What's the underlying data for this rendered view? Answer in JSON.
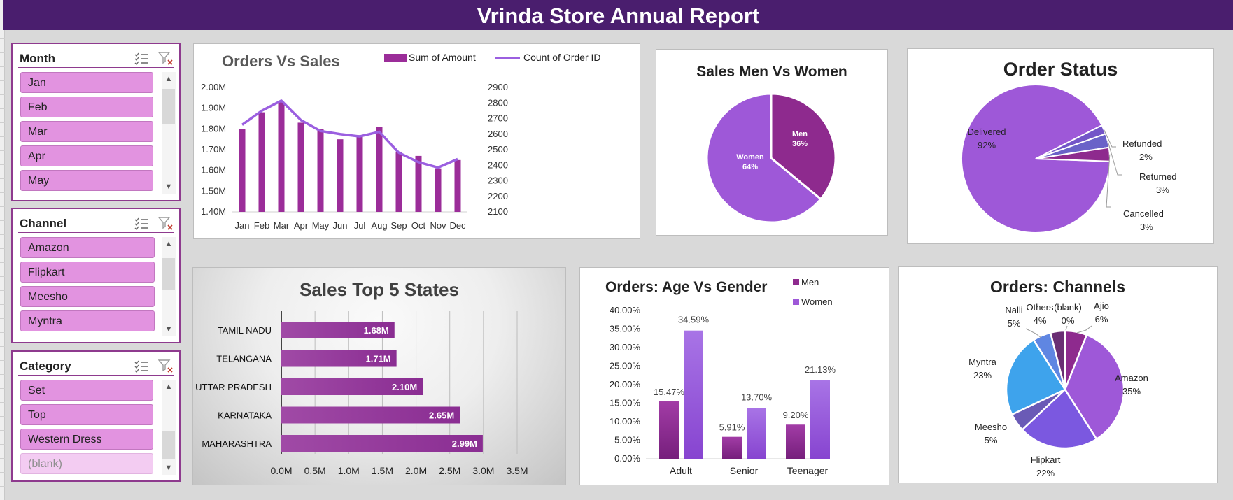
{
  "title": "Vrinda Store Annual Report",
  "slicers": {
    "month": {
      "title": "Month",
      "items": [
        "Jan",
        "Feb",
        "Mar",
        "Apr",
        "May"
      ]
    },
    "channel": {
      "title": "Channel",
      "items": [
        "Amazon",
        "Flipkart",
        "Meesho",
        "Myntra"
      ]
    },
    "category": {
      "title": "Category",
      "items": [
        "Set",
        "Top",
        "Western Dress",
        "(blank)"
      ]
    },
    "icons": {
      "multiselect": "multi-select-icon",
      "clear": "clear-filter-icon",
      "scroll_up": "chevron-up-icon",
      "scroll_down": "chevron-down-icon"
    }
  },
  "colors": {
    "header": "#4a1e6e",
    "bar_purple": "#9b2d99",
    "line_purple": "#9b5fe0",
    "men": "#8e2a8e",
    "women": "#9e58d8",
    "slicer_item": "#e293e0",
    "slicer_border": "#8e3a8e"
  },
  "chart_data": [
    {
      "type": "bar",
      "title": "Orders Vs Sales",
      "categories": [
        "Jan",
        "Feb",
        "Mar",
        "Apr",
        "May",
        "Jun",
        "Jul",
        "Aug",
        "Sep",
        "Oct",
        "Nov",
        "Dec"
      ],
      "series": [
        {
          "name": "Sum of Amount",
          "type": "bar",
          "axis": "left",
          "values": [
            1.8,
            1.88,
            1.93,
            1.83,
            1.8,
            1.75,
            1.77,
            1.81,
            1.69,
            1.67,
            1.61,
            1.65
          ]
        },
        {
          "name": "Count of Order ID",
          "type": "line",
          "axis": "right",
          "values": [
            2660,
            2750,
            2815,
            2690,
            2620,
            2600,
            2585,
            2615,
            2480,
            2420,
            2385,
            2440
          ]
        }
      ],
      "ylim_left": [
        1.4,
        2.0
      ],
      "ylim_right": [
        2100,
        2900
      ],
      "ytick_labels_left": [
        "2.00M",
        "1.90M",
        "1.80M",
        "1.70M",
        "1.60M",
        "1.50M",
        "1.40M"
      ],
      "ytick_labels_right": [
        "2900",
        "2800",
        "2700",
        "2600",
        "2500",
        "2400",
        "2300",
        "2200",
        "2100"
      ],
      "legend": "top"
    },
    {
      "type": "pie",
      "title": "Sales Men Vs Women",
      "labels": [
        "Men",
        "Women"
      ],
      "values": [
        36,
        64
      ],
      "value_labels": [
        "36%",
        "64%"
      ]
    },
    {
      "type": "pie",
      "title": "Order Status",
      "labels": [
        "Delivered",
        "Refunded",
        "Returned",
        "Cancelled"
      ],
      "values": [
        92,
        2,
        3,
        3
      ],
      "value_labels": [
        "92%",
        "2%",
        "3%",
        "3%"
      ]
    },
    {
      "type": "bar",
      "orientation": "horizontal",
      "title": "Sales Top 5 States",
      "categories": [
        "TAMIL NADU",
        "TELANGANA",
        "UTTAR PRADESH",
        "KARNATAKA",
        "MAHARASHTRA"
      ],
      "values": [
        1.68,
        1.71,
        2.1,
        2.65,
        2.99
      ],
      "value_labels": [
        "1.68M",
        "1.71M",
        "2.10M",
        "2.65M",
        "2.99M"
      ],
      "xlim": [
        0,
        3.5
      ],
      "xtick_labels": [
        "0.0M",
        "0.5M",
        "1.0M",
        "1.5M",
        "2.0M",
        "2.5M",
        "3.0M",
        "3.5M"
      ]
    },
    {
      "type": "bar",
      "title": "Orders: Age Vs Gender",
      "categories": [
        "Adult",
        "Senior",
        "Teenager"
      ],
      "series": [
        {
          "name": "Men",
          "values": [
            15.47,
            5.91,
            9.2
          ],
          "value_labels": [
            "15.47%",
            "5.91%",
            "9.20%"
          ]
        },
        {
          "name": "Women",
          "values": [
            34.59,
            13.7,
            21.13
          ],
          "value_labels": [
            "34.59%",
            "13.70%",
            "21.13%"
          ]
        }
      ],
      "ylim": [
        0,
        40
      ],
      "ytick_labels": [
        "40.00%",
        "35.00%",
        "30.00%",
        "25.00%",
        "20.00%",
        "15.00%",
        "10.00%",
        "5.00%",
        "0.00%"
      ],
      "legend": "top-right"
    },
    {
      "type": "pie",
      "title": "Orders: Channels",
      "labels": [
        "Ajio",
        "Amazon",
        "Flipkart",
        "Meesho",
        "Myntra",
        "Nalli",
        "Others",
        "(blank)"
      ],
      "values": [
        6,
        35,
        22,
        5,
        23,
        5,
        4,
        0
      ],
      "value_labels": [
        "6%",
        "35%",
        "22%",
        "5%",
        "23%",
        "5%",
        "4%",
        "0%"
      ]
    }
  ]
}
